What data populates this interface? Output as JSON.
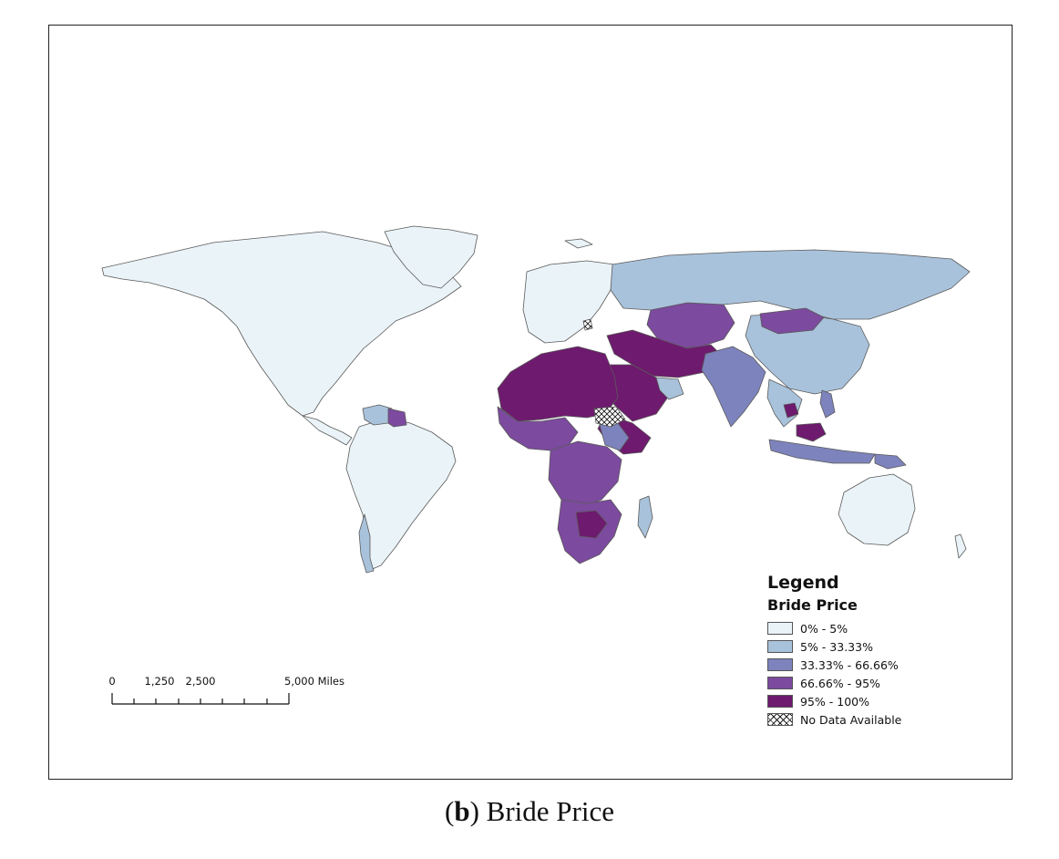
{
  "legend": {
    "title": "Legend",
    "subtitle": "Bride Price",
    "items": [
      {
        "label": "0% - 5%",
        "color": "#eaf3f8"
      },
      {
        "label": "5% - 33.33%",
        "color": "#a9c2db"
      },
      {
        "label": "33.33% - 66.66%",
        "color": "#7d83bc"
      },
      {
        "label": "66.66% - 95%",
        "color": "#7c4a9e"
      },
      {
        "label": "95% - 100%",
        "color": "#6e1a6e"
      },
      {
        "label": "No Data Available",
        "pattern": "crosshatch"
      }
    ]
  },
  "scale_bar": {
    "labels": [
      "0",
      "1,250",
      "2,500",
      "5,000 Miles"
    ]
  },
  "caption": {
    "letter": "b",
    "text": "Bride Price"
  },
  "colors": {
    "land_border": "#5a5a5a",
    "frame": "#222222"
  }
}
